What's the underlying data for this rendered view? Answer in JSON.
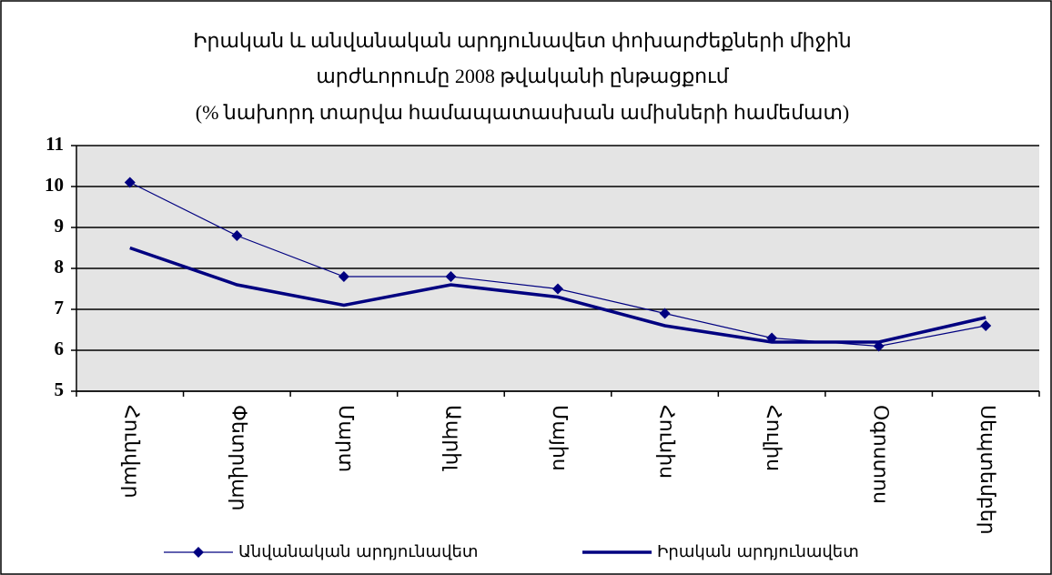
{
  "chart_data": {
    "type": "line",
    "title": [
      "Իրական և անվանական արդյունավետ փոխարժեքների միջին",
      "արժևորումը 2008 թվականի ընթացքում",
      "(% նախորդ տարվա համապատասխան ամիսների համեմատ)"
    ],
    "categories": [
      "Հունվար",
      "Փետրվար",
      "Մարտ",
      "Ապրիլ",
      "Մայիս",
      "Հունիս",
      "Հուլիս",
      "Օգոստոս",
      "Սեպտեմբեր"
    ],
    "series": [
      {
        "name": "Անվանական արդյունավետ",
        "color": "#000080",
        "marker": "diamond",
        "width": 1.2,
        "values": [
          10.1,
          8.8,
          7.8,
          7.8,
          7.5,
          6.9,
          6.3,
          6.1,
          6.6
        ]
      },
      {
        "name": "Իրական արդյունավետ",
        "color": "#000080",
        "marker": "none",
        "width": 3.5,
        "values": [
          8.5,
          7.6,
          7.1,
          7.6,
          7.3,
          6.6,
          6.2,
          6.2,
          6.8
        ]
      }
    ],
    "ylim": [
      5,
      11
    ],
    "yticks": [
      5,
      6,
      7,
      8,
      9,
      10,
      11
    ],
    "grid": true,
    "legend": "bottom"
  }
}
